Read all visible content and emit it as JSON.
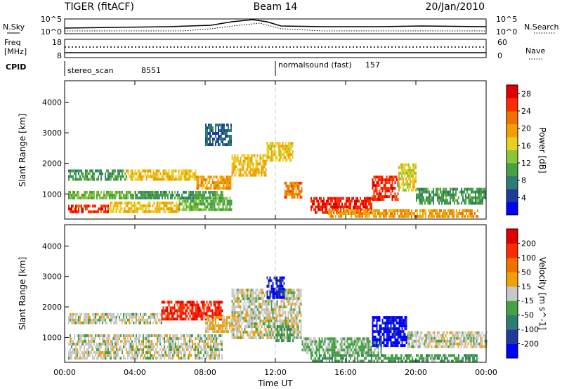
{
  "header": {
    "title": "TIGER (fitACF)",
    "beam": "Beam 14",
    "date": "20/Jan/2010"
  },
  "strips": {
    "nsky": {
      "label": "N.Sky",
      "ticks": [
        "10^5",
        "10^0"
      ],
      "right_ticks": [
        "10^5",
        "10^0"
      ],
      "right_label": "N.Search"
    },
    "freq": {
      "label": "Freq",
      "unit": "[MHz]",
      "ticks": [
        "18",
        "8"
      ],
      "right_ticks": [
        "60",
        "0"
      ],
      "right_label": "Nave"
    },
    "cpid": {
      "label": "CPID",
      "segments": [
        {
          "name": "stereo_scan",
          "id": "8551",
          "start_hour": 0,
          "end_hour": 12
        },
        {
          "name": "normalsound (fast)",
          "id": "157",
          "start_hour": 12,
          "end_hour": 24
        }
      ]
    }
  },
  "chart_data": [
    {
      "type": "heatmap",
      "title": "",
      "xlabel": "Time UT",
      "ylabel": "Slant Range [km]",
      "x_ticks": [
        "00:00",
        "04:00",
        "08:00",
        "12:00",
        "16:00",
        "20:00",
        "00:00"
      ],
      "xlim_hours": [
        0,
        24
      ],
      "y_ticks": [
        1000,
        2000,
        3000,
        4000
      ],
      "ylim": [
        180,
        4700
      ],
      "colorbar": {
        "label": "Power [dB]",
        "ticks": [
          "4",
          "8",
          "12",
          "16",
          "20",
          "24",
          "28"
        ],
        "range": [
          0,
          30
        ],
        "colors": [
          "#0000ff",
          "#1e3c9c",
          "#2e7d74",
          "#46a044",
          "#8cc43a",
          "#e8d020",
          "#f0a000",
          "#f07000",
          "#ff2a00",
          "#e00000"
        ]
      },
      "echo_regions": [
        {
          "t": [
            0.2,
            2.5
          ],
          "r": [
            450,
            650
          ],
          "v": 26
        },
        {
          "t": [
            2.5,
            6.5
          ],
          "r": [
            400,
            750
          ],
          "v": 18
        },
        {
          "t": [
            6.5,
            9.5
          ],
          "r": [
            500,
            900
          ],
          "v": 12
        },
        {
          "t": [
            0.2,
            4.0
          ],
          "r": [
            850,
            1100
          ],
          "v": 12
        },
        {
          "t": [
            4.0,
            9.0
          ],
          "r": [
            850,
            1100
          ],
          "v": 10
        },
        {
          "t": [
            0.2,
            3.5
          ],
          "r": [
            1450,
            1800
          ],
          "v": 10
        },
        {
          "t": [
            3.5,
            7.5
          ],
          "r": [
            1500,
            1800
          ],
          "v": 18
        },
        {
          "t": [
            7.5,
            9.5
          ],
          "r": [
            1200,
            1600
          ],
          "v": 20
        },
        {
          "t": [
            9.5,
            11.5
          ],
          "r": [
            1600,
            2300
          ],
          "v": 18
        },
        {
          "t": [
            11.5,
            13.0
          ],
          "r": [
            2100,
            2700
          ],
          "v": 17
        },
        {
          "t": [
            12.5,
            13.5
          ],
          "r": [
            900,
            1400
          ],
          "v": 22
        },
        {
          "t": [
            8.0,
            9.5
          ],
          "r": [
            2600,
            3300
          ],
          "v": 6
        },
        {
          "t": [
            14.0,
            17.5
          ],
          "r": [
            350,
            900
          ],
          "v": 27
        },
        {
          "t": [
            17.5,
            19.0
          ],
          "r": [
            800,
            1600
          ],
          "v": 26
        },
        {
          "t": [
            19.0,
            20.0
          ],
          "r": [
            1100,
            2000
          ],
          "v": 16
        },
        {
          "t": [
            20.0,
            24.0
          ],
          "r": [
            700,
            1200
          ],
          "v": 10
        },
        {
          "t": [
            15.0,
            23.5
          ],
          "r": [
            300,
            500
          ],
          "v": 20
        }
      ]
    },
    {
      "type": "heatmap",
      "title": "",
      "xlabel": "Time UT",
      "ylabel": "Slant Range [km]",
      "x_ticks": [
        "00:00",
        "04:00",
        "08:00",
        "12:00",
        "16:00",
        "20:00",
        "00:00"
      ],
      "xlim_hours": [
        0,
        24
      ],
      "y_ticks": [
        1000,
        2000,
        3000,
        4000
      ],
      "ylim": [
        180,
        4700
      ],
      "colorbar": {
        "label": "Velocity [m s^-1]",
        "ticks": [
          "200",
          "100",
          "50",
          "15",
          "-15",
          "-50",
          "-100",
          "-200"
        ],
        "range": [
          -250,
          250
        ],
        "colors": [
          "#0000ff",
          "#1e3c9c",
          "#2e7d74",
          "#46a044",
          "#c8c8c8",
          "#f0a000",
          "#f07000",
          "#ff2a00",
          "#e00000"
        ]
      },
      "echo_regions": [
        {
          "t": [
            0.2,
            9.0
          ],
          "r": [
            350,
            1100
          ],
          "v": 0
        },
        {
          "t": [
            0.2,
            5.5
          ],
          "r": [
            1450,
            1800
          ],
          "v": 0
        },
        {
          "t": [
            5.5,
            9.0
          ],
          "r": [
            1600,
            2200
          ],
          "v": 180
        },
        {
          "t": [
            8.0,
            10.0
          ],
          "r": [
            1200,
            1700
          ],
          "v": 30
        },
        {
          "t": [
            9.5,
            13.5
          ],
          "r": [
            1000,
            2600
          ],
          "v": 0
        },
        {
          "t": [
            11.5,
            12.5
          ],
          "r": [
            2300,
            3000
          ],
          "v": -200
        },
        {
          "t": [
            12.0,
            13.0
          ],
          "r": [
            900,
            1400
          ],
          "v": -60
        },
        {
          "t": [
            13.5,
            18.0
          ],
          "r": [
            450,
            1000
          ],
          "v": -40
        },
        {
          "t": [
            17.5,
            19.5
          ],
          "r": [
            700,
            1700
          ],
          "v": -220
        },
        {
          "t": [
            19.5,
            24.0
          ],
          "r": [
            700,
            1200
          ],
          "v": 0
        },
        {
          "t": [
            14.0,
            23.5
          ],
          "r": [
            250,
            450
          ],
          "v": -60
        }
      ]
    }
  ],
  "colors": {
    "missing": "#ffffff",
    "ground_scatter": "#c8c8c8",
    "axis": "#000000",
    "dashed_marker": "#c8c8c8"
  }
}
